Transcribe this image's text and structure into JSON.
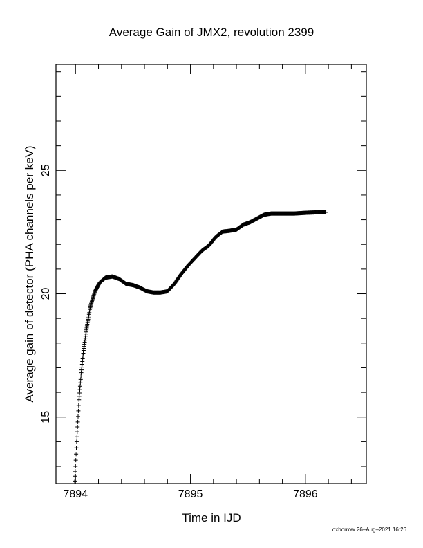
{
  "chart_data": {
    "type": "scatter",
    "title": "Average Gain of JMX2, revolution 2399",
    "xlabel": "Time in IJD",
    "ylabel": "Average gain of detector (PHA channels per keV)",
    "xlim": [
      7893.83,
      7896.53
    ],
    "ylim": [
      12.3,
      29.3
    ],
    "x_ticks": [
      7894,
      7895,
      7896
    ],
    "x_tick_labels": [
      "7894",
      "7895",
      "7896"
    ],
    "y_ticks": [
      15,
      20,
      25
    ],
    "y_tick_labels": [
      "15",
      "20",
      "25"
    ],
    "marker": "plus",
    "grid": false,
    "series": [
      {
        "knots": [
          [
            7893.99,
            12.2
          ],
          [
            7894.0,
            13.0
          ],
          [
            7894.01,
            14.0
          ],
          [
            7894.02,
            14.8
          ],
          [
            7894.03,
            15.7
          ],
          [
            7894.05,
            16.8
          ],
          [
            7894.07,
            17.7
          ],
          [
            7894.1,
            18.7
          ],
          [
            7894.13,
            19.5
          ],
          [
            7894.17,
            20.1
          ],
          [
            7894.21,
            20.45
          ],
          [
            7894.26,
            20.65
          ],
          [
            7894.32,
            20.7
          ],
          [
            7894.38,
            20.6
          ],
          [
            7894.44,
            20.4
          ],
          [
            7894.5,
            20.35
          ],
          [
            7894.56,
            20.25
          ],
          [
            7894.62,
            20.1
          ],
          [
            7894.68,
            20.05
          ],
          [
            7894.74,
            20.05
          ],
          [
            7894.8,
            20.1
          ],
          [
            7894.86,
            20.4
          ],
          [
            7894.92,
            20.8
          ],
          [
            7894.98,
            21.15
          ],
          [
            7895.04,
            21.45
          ],
          [
            7895.1,
            21.75
          ],
          [
            7895.16,
            21.95
          ],
          [
            7895.22,
            22.3
          ],
          [
            7895.28,
            22.52
          ],
          [
            7895.34,
            22.55
          ],
          [
            7895.4,
            22.6
          ],
          [
            7895.46,
            22.8
          ],
          [
            7895.52,
            22.9
          ],
          [
            7895.58,
            23.05
          ],
          [
            7895.64,
            23.2
          ],
          [
            7895.7,
            23.25
          ],
          [
            7895.8,
            23.25
          ],
          [
            7895.9,
            23.25
          ],
          [
            7896.0,
            23.28
          ],
          [
            7896.1,
            23.3
          ],
          [
            7896.18,
            23.3
          ]
        ]
      }
    ]
  },
  "footer": "oxborrow 26–Aug–2021 16:26"
}
